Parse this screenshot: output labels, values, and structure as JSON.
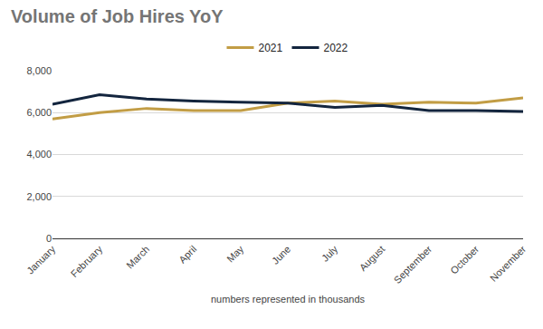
{
  "chart_data": {
    "type": "line",
    "title": "Volume of Job Hires YoY",
    "x_label": "numbers represented in thousands",
    "categories": [
      "January",
      "February",
      "March",
      "April",
      "May",
      "June",
      "July",
      "August",
      "September",
      "October",
      "November"
    ],
    "series": [
      {
        "name": "2021",
        "color": "#c29d45",
        "values": [
          5700,
          6000,
          6200,
          6100,
          6100,
          6450,
          6550,
          6400,
          6500,
          6450,
          6700
        ]
      },
      {
        "name": "2022",
        "color": "#13253e",
        "values": [
          6400,
          6850,
          6650,
          6550,
          6500,
          6450,
          6250,
          6350,
          6100,
          6100,
          6050
        ]
      }
    ],
    "ylim": [
      0,
      8000
    ],
    "yticks": [
      0,
      {
        "value": 2000,
        "label": "2,000"
      },
      {
        "value": 4000,
        "label": "4,000"
      },
      {
        "value": 6000,
        "label": "6,000"
      },
      {
        "value": 8000,
        "label": "8,000"
      }
    ],
    "grid": true,
    "legend": "top"
  }
}
